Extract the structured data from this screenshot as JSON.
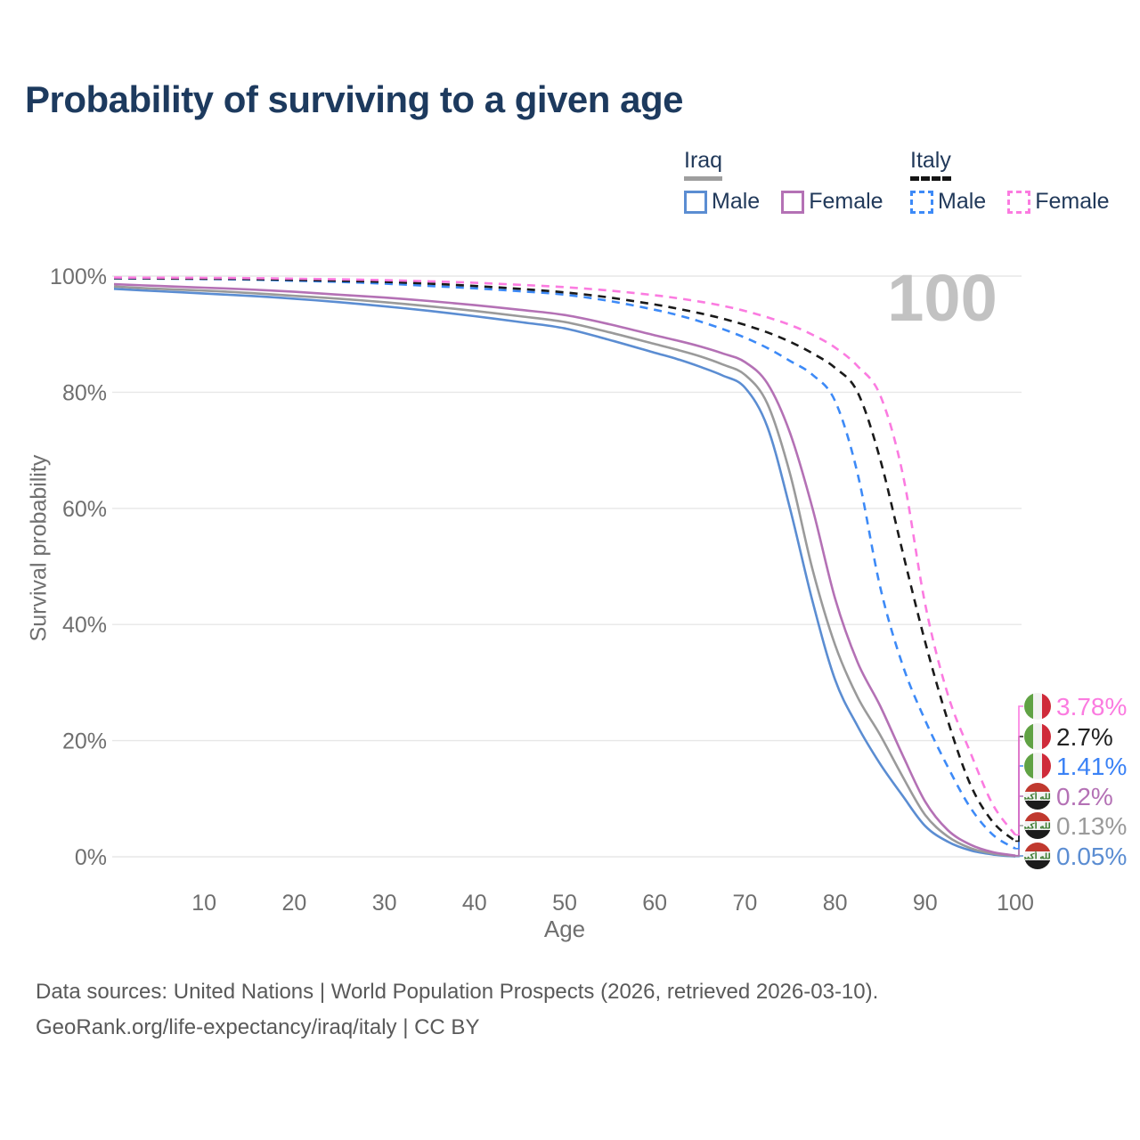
{
  "page": {
    "title": "Probability of surviving to a given age"
  },
  "legend": {
    "groups": [
      {
        "id": "iraq",
        "label": "Iraq",
        "line_style": "solid",
        "header_color": "#9e9e9e",
        "items": [
          {
            "label": "Male",
            "color": "#5b8dd2"
          },
          {
            "label": "Female",
            "color": "#b471b5"
          }
        ]
      },
      {
        "id": "italy",
        "label": "Italy",
        "line_style": "dashed",
        "header_color": "#141414",
        "items": [
          {
            "label": "Male",
            "color": "#3d8af7"
          },
          {
            "label": "Female",
            "color": "#fb7be0"
          }
        ]
      }
    ]
  },
  "chart_data": {
    "type": "line",
    "title": "Probability of surviving to a given age",
    "xlabel": "Age",
    "ylabel": "Survival probability",
    "xlim": [
      0,
      100
    ],
    "ylim": [
      0,
      100
    ],
    "grid": "horizontal-only",
    "watermark": "100",
    "x_ticks": [
      10,
      20,
      30,
      40,
      50,
      60,
      70,
      80,
      90,
      100
    ],
    "y_ticks": [
      {
        "value": 100,
        "label": "100%"
      },
      {
        "value": 80,
        "label": "80%"
      },
      {
        "value": 60,
        "label": "60%"
      },
      {
        "value": 40,
        "label": "40%"
      },
      {
        "value": 20,
        "label": "20%"
      },
      {
        "value": 0,
        "label": "0%"
      }
    ],
    "x": [
      0,
      5,
      10,
      15,
      20,
      25,
      30,
      35,
      40,
      45,
      50,
      55,
      60,
      62.5,
      65,
      67.5,
      70,
      72.5,
      75,
      77.5,
      80,
      82.5,
      85,
      87.5,
      90,
      92.5,
      95,
      97.5,
      100
    ],
    "series": [
      {
        "name": "Iraq Male",
        "country": "Iraq",
        "sex": "Male",
        "line": "solid",
        "color": "#5b8dd2",
        "values": [
          97.8,
          97.4,
          97.0,
          96.6,
          96.1,
          95.5,
          94.8,
          94.0,
          93.1,
          92.1,
          91.0,
          89.0,
          86.8,
          85.7,
          84.4,
          82.9,
          80.8,
          74.0,
          60.0,
          44.0,
          30.5,
          22.5,
          16.0,
          10.5,
          5.3,
          2.6,
          1.1,
          0.4,
          0.05
        ],
        "end": {
          "text": "0.05%",
          "flag": "iraq",
          "row": 5
        }
      },
      {
        "name": "Iraq Total",
        "country": "Iraq",
        "sex": "Both",
        "line": "solid",
        "color": "#9a9a9a",
        "values": [
          98.2,
          97.8,
          97.5,
          97.1,
          96.6,
          96.1,
          95.5,
          94.8,
          94.0,
          93.1,
          92.1,
          90.3,
          88.3,
          87.3,
          86.2,
          84.8,
          83.0,
          78.0,
          66.0,
          49.5,
          36.5,
          27.5,
          21.0,
          13.8,
          7.2,
          3.5,
          1.5,
          0.55,
          0.13
        ],
        "end": {
          "text": "0.13%",
          "flag": "iraq",
          "row": 4
        }
      },
      {
        "name": "Iraq Female",
        "country": "Iraq",
        "sex": "Female",
        "line": "solid",
        "color": "#b471b5",
        "values": [
          98.6,
          98.3,
          98.0,
          97.7,
          97.3,
          96.8,
          96.3,
          95.7,
          95.0,
          94.2,
          93.3,
          91.7,
          89.8,
          88.9,
          87.9,
          86.7,
          85.2,
          81.5,
          73.0,
          60.0,
          44.5,
          33.5,
          26.0,
          17.5,
          9.5,
          4.6,
          2.1,
          0.8,
          0.2
        ],
        "end": {
          "text": "0.2%",
          "flag": "iraq",
          "row": 3
        }
      },
      {
        "name": "Italy Male",
        "country": "Italy",
        "sex": "Male",
        "line": "dashed",
        "color": "#3d8af7",
        "values": [
          99.6,
          99.55,
          99.5,
          99.4,
          99.2,
          99.0,
          98.7,
          98.3,
          97.9,
          97.4,
          96.8,
          95.7,
          94.2,
          93.3,
          92.2,
          90.9,
          89.4,
          87.6,
          85.4,
          83.0,
          78.5,
          66.0,
          46.5,
          33.0,
          23.5,
          15.5,
          8.5,
          3.8,
          1.41
        ],
        "end": {
          "text": "1.41%",
          "flag": "italy",
          "row": 2
        }
      },
      {
        "name": "Italy Total",
        "country": "Italy",
        "sex": "Both",
        "line": "dashed",
        "color": "#1a1a1a",
        "values": [
          99.65,
          99.6,
          99.55,
          99.5,
          99.35,
          99.2,
          99.0,
          98.7,
          98.3,
          97.8,
          97.2,
          96.3,
          95.1,
          94.4,
          93.6,
          92.7,
          91.6,
          90.3,
          88.7,
          86.7,
          84.2,
          80.0,
          68.5,
          52.5,
          37.0,
          23.5,
          12.5,
          6.0,
          2.7
        ],
        "end": {
          "text": "2.7%",
          "flag": "italy",
          "row": 1
        }
      },
      {
        "name": "Italy Female",
        "country": "Italy",
        "sex": "Female",
        "line": "dashed",
        "color": "#fb7be0",
        "values": [
          99.75,
          99.72,
          99.7,
          99.65,
          99.55,
          99.45,
          99.3,
          99.1,
          98.85,
          98.5,
          98.1,
          97.5,
          96.7,
          96.2,
          95.6,
          94.9,
          94.0,
          92.9,
          91.6,
          89.9,
          87.7,
          84.5,
          79.5,
          66.0,
          43.5,
          28.0,
          18.0,
          9.0,
          3.78
        ],
        "end": {
          "text": "3.78%",
          "flag": "italy",
          "row": 0
        }
      }
    ],
    "legend_position": "top-right"
  },
  "end_labels": [
    {
      "text": "3.78%",
      "flag": "italy",
      "color": "#fb7be0",
      "series": "Italy Female"
    },
    {
      "text": "2.7%",
      "flag": "italy",
      "color": "#222222",
      "series": "Italy Total"
    },
    {
      "text": "1.41%",
      "flag": "italy",
      "color": "#3b82f6",
      "series": "Italy Male"
    },
    {
      "text": "0.2%",
      "flag": "iraq",
      "color": "#b471b5",
      "series": "Iraq Female"
    },
    {
      "text": "0.13%",
      "flag": "iraq",
      "color": "#9a9a9a",
      "series": "Iraq Total"
    },
    {
      "text": "0.05%",
      "flag": "iraq",
      "color": "#5b8dd2",
      "series": "Iraq Male"
    }
  ],
  "flags": {
    "italy": {
      "green": "#60a244",
      "white": "#f2f2f2",
      "red": "#cf2b3a"
    },
    "iraq": {
      "red": "#c0392f",
      "white": "#f2f2f2",
      "black": "#1b1b1b",
      "script": "الله أكبر",
      "script_color": "#3f7d33"
    }
  },
  "footer": {
    "line1": "Data sources: United Nations | World Population Prospects (2026, retrieved 2026-03-10).",
    "line2": "GeoRank.org/life-expectancy/iraq/italy | CC BY"
  },
  "colors": {
    "title_text": "#1d3a5e",
    "legend_text": "#21395a",
    "axis_text": "#6f6f6f",
    "gridline": "#e7e7e7",
    "watermark": "#c2c2c2",
    "footer_text": "#595959"
  }
}
